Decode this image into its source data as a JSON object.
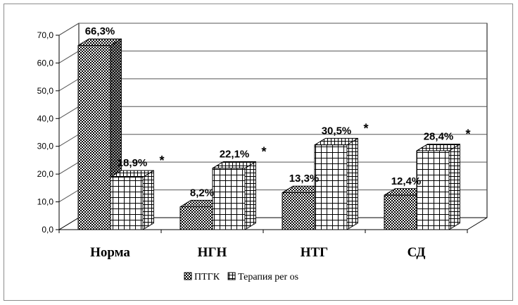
{
  "chart_data": {
    "type": "bar",
    "categories": [
      "Норма",
      "НГН",
      "НТГ",
      "СД"
    ],
    "series": [
      {
        "name": "ПТГК",
        "values": [
          66.3,
          8.2,
          13.3,
          12.4
        ],
        "labels": [
          "66,3%",
          "8,2%",
          "13,3%",
          "12,4%"
        ],
        "pattern": "checker"
      },
      {
        "name": "Терапия per os",
        "values": [
          18.9,
          22.1,
          30.5,
          28.4
        ],
        "labels": [
          "18,9%",
          "22,1%",
          "30,5%",
          "28,4%"
        ],
        "pattern": "grid",
        "marker": "*"
      }
    ],
    "ylim": [
      0,
      70
    ],
    "yticks": [
      "0,0",
      "10,0",
      "20,0",
      "30,0",
      "40,0",
      "50,0",
      "60,0",
      "70,0"
    ],
    "grid": true,
    "legend_position": "bottom"
  }
}
